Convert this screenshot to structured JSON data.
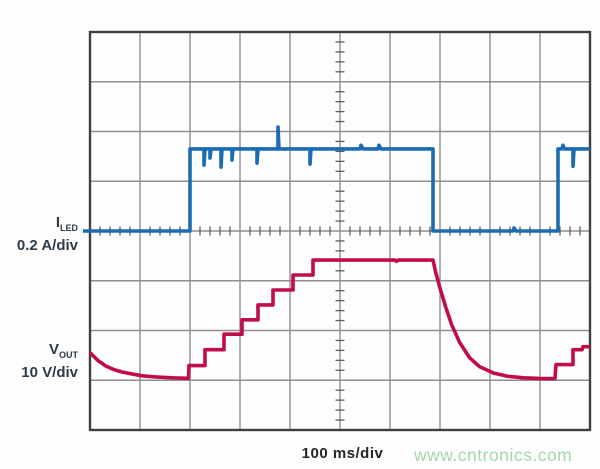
{
  "labels": {
    "iled": {
      "base": "I",
      "sub": "LED",
      "scale": "0.2 A/div"
    },
    "vout": {
      "base": "V",
      "sub": "OUT",
      "scale": "10 V/div"
    },
    "timebase": "100 ms/div",
    "watermark": "www.cntronics.com"
  },
  "colors": {
    "iled_trace": "#1b6cb3",
    "vout_trace": "#c00d45",
    "grid_line": "#8f8f8f",
    "grid_border": "#3f3f3f",
    "grid_tick": "#606060",
    "channel_label_text": "#2e3b49",
    "timebase_text": "#252525",
    "watermark_text": "#a4d7a9"
  },
  "chart_data": {
    "type": "line",
    "title": "",
    "xlabel": "100 ms/div",
    "x_axis": {
      "unit": "ms",
      "per_div": 100,
      "divisions": 10,
      "range": [
        0,
        1000
      ]
    },
    "y_axis": {
      "divisions": 8,
      "grid": "oscilloscope graticule with minor ticks every 0.2 div on center axes"
    },
    "legend_position": "left-outside",
    "series": [
      {
        "name": "ILED",
        "label": "I LED 0.2 A/div",
        "color": "#1b6cb3",
        "unit": "A",
        "per_div": 0.2,
        "zero_at_div_from_top": 4.0,
        "points": [
          [
            -14,
            0
          ],
          [
            0,
            0
          ],
          [
            200,
            0
          ],
          [
            200,
            0.33
          ],
          [
            228,
            0.33
          ],
          [
            228,
            0.265
          ],
          [
            230,
            0.33
          ],
          [
            240,
            0.33
          ],
          [
            240,
            0.293
          ],
          [
            242,
            0.33
          ],
          [
            262,
            0.33
          ],
          [
            262,
            0.257
          ],
          [
            264,
            0.33
          ],
          [
            284,
            0.33
          ],
          [
            284,
            0.285
          ],
          [
            286,
            0.33
          ],
          [
            334,
            0.33
          ],
          [
            334,
            0.273
          ],
          [
            336,
            0.33
          ],
          [
            376,
            0.33
          ],
          [
            376,
            0.418
          ],
          [
            378,
            0.33
          ],
          [
            440,
            0.33
          ],
          [
            440,
            0.269
          ],
          [
            442,
            0.33
          ],
          [
            540,
            0.33
          ],
          [
            542,
            0.345
          ],
          [
            546,
            0.33
          ],
          [
            576,
            0.33
          ],
          [
            578,
            0.345
          ],
          [
            582,
            0.33
          ],
          [
            686,
            0.33
          ],
          [
            686,
            0
          ],
          [
            846,
            0
          ],
          [
            848,
            0.012
          ],
          [
            852,
            0
          ],
          [
            936,
            0
          ],
          [
            936,
            0.33
          ],
          [
            944,
            0.33
          ],
          [
            946,
            0.345
          ],
          [
            949,
            0.33
          ],
          [
            966,
            0.33
          ],
          [
            966,
            0.26
          ],
          [
            968,
            0.33
          ],
          [
            1000,
            0.33
          ]
        ]
      },
      {
        "name": "VOUT",
        "label": "V OUT 10 V/div",
        "color": "#c00d45",
        "unit": "V",
        "per_div": 10,
        "zero_at_div_from_top": 6.965,
        "points": [
          [
            0,
            5.2
          ],
          [
            16,
            3.6
          ],
          [
            32,
            2.5
          ],
          [
            48,
            1.8
          ],
          [
            64,
            1.3
          ],
          [
            84,
            0.9
          ],
          [
            104,
            0.55
          ],
          [
            128,
            0.35
          ],
          [
            152,
            0.2
          ],
          [
            176,
            0.1
          ],
          [
            197,
            0.05
          ],
          [
            198,
            2.6
          ],
          [
            230,
            2.6
          ],
          [
            230,
            5.8
          ],
          [
            268,
            5.8
          ],
          [
            268,
            8.9
          ],
          [
            304,
            8.9
          ],
          [
            304,
            11.8
          ],
          [
            336,
            11.8
          ],
          [
            336,
            14.8
          ],
          [
            366,
            14.8
          ],
          [
            366,
            17.8
          ],
          [
            406,
            17.8
          ],
          [
            406,
            20.8
          ],
          [
            446,
            20.8
          ],
          [
            446,
            23.8
          ],
          [
            610,
            23.8
          ],
          [
            613,
            23.55
          ],
          [
            616,
            23.8
          ],
          [
            686,
            23.8
          ],
          [
            691,
            21.5
          ],
          [
            699,
            18.5
          ],
          [
            711,
            14.5
          ],
          [
            723,
            10.9
          ],
          [
            739,
            7.3
          ],
          [
            759,
            4.2
          ],
          [
            779,
            2.4
          ],
          [
            807,
            1.1
          ],
          [
            835,
            0.45
          ],
          [
            867,
            0.15
          ],
          [
            898,
            0.02
          ],
          [
            930,
            0
          ],
          [
            932,
            2.8
          ],
          [
            966,
            2.8
          ],
          [
            966,
            5.8
          ],
          [
            984,
            5.8
          ],
          [
            986,
            6.4
          ],
          [
            1000,
            6.4
          ]
        ]
      }
    ]
  }
}
